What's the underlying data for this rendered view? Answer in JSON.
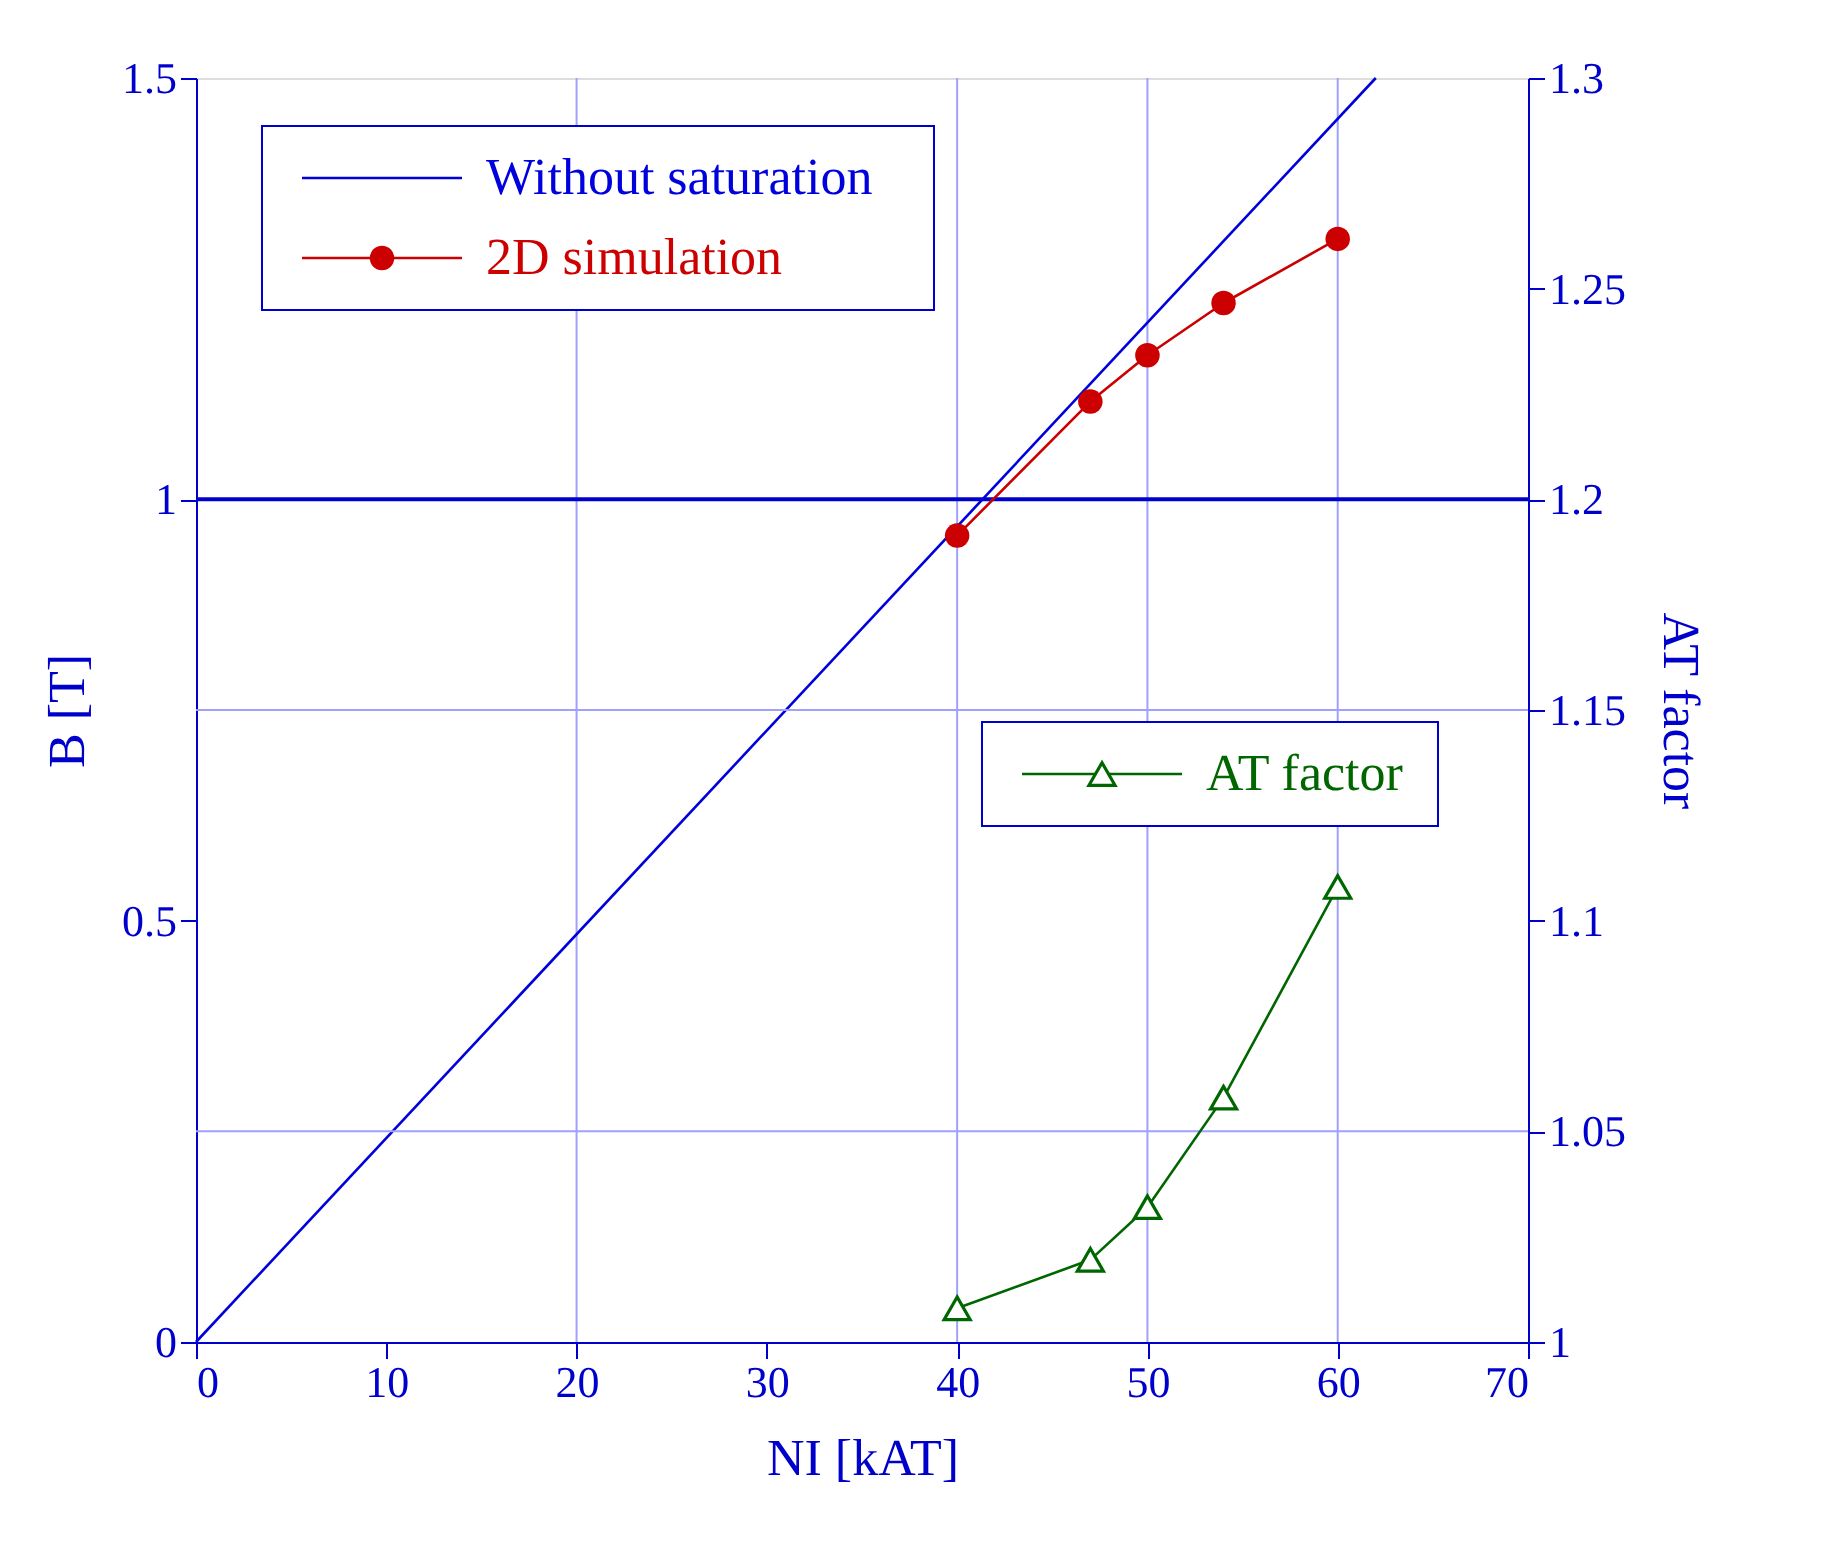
{
  "chart_data": {
    "type": "line",
    "xlabel": "NI [kAT]",
    "ylabel": "B [T]",
    "y2label": "AT factor",
    "xlim": [
      0,
      70
    ],
    "xticks": [
      0,
      10,
      20,
      30,
      40,
      50,
      60,
      70
    ],
    "ylim": [
      0,
      1.5
    ],
    "yticks": [
      0,
      0.5,
      1,
      1.5
    ],
    "y2lim": [
      1,
      1.3
    ],
    "y2ticks": [
      1,
      1.05,
      1.1,
      1.15,
      1.2,
      1.25,
      1.3
    ],
    "grid": false,
    "legend": "top left",
    "line_style": "solid",
    "series": [
      {
        "name": "Without saturation",
        "color": "#0000dd",
        "x": [
          0,
          62
        ],
        "values": [
          0,
          1.5
        ],
        "marker": "none"
      },
      {
        "name": "2D simulation",
        "color": "#cc0000",
        "x": [
          40,
          47,
          50,
          54,
          60
        ],
        "values": [
          0.957,
          1.116,
          1.171,
          1.233,
          1.309
        ],
        "marker": "circle"
      },
      {
        "name": "AT factor",
        "color": "#006600",
        "x": [
          40,
          47,
          50,
          54,
          60
        ],
        "values": [
          1.008,
          1.0195,
          1.032,
          1.058,
          1.108
        ],
        "marker": "triangle",
        "axis": "y2"
      }
    ],
    "ref_lines": [
      {
        "axis": "x",
        "value": 20,
        "color": "#a0a0ff"
      },
      {
        "axis": "x",
        "value": 40,
        "color": "#a0a0ff"
      },
      {
        "axis": "x",
        "value": 50,
        "color": "#a0a0ff"
      },
      {
        "axis": "x",
        "value": 60,
        "color": "#a0a0ff"
      },
      {
        "axis": "y2",
        "value": 1.05,
        "color": "#a0a0ff"
      },
      {
        "axis": "y2",
        "value": 1.15,
        "color": "#a0a0ff"
      },
      {
        "axis": "y",
        "value": 1,
        "color": "#0000cc"
      }
    ]
  }
}
